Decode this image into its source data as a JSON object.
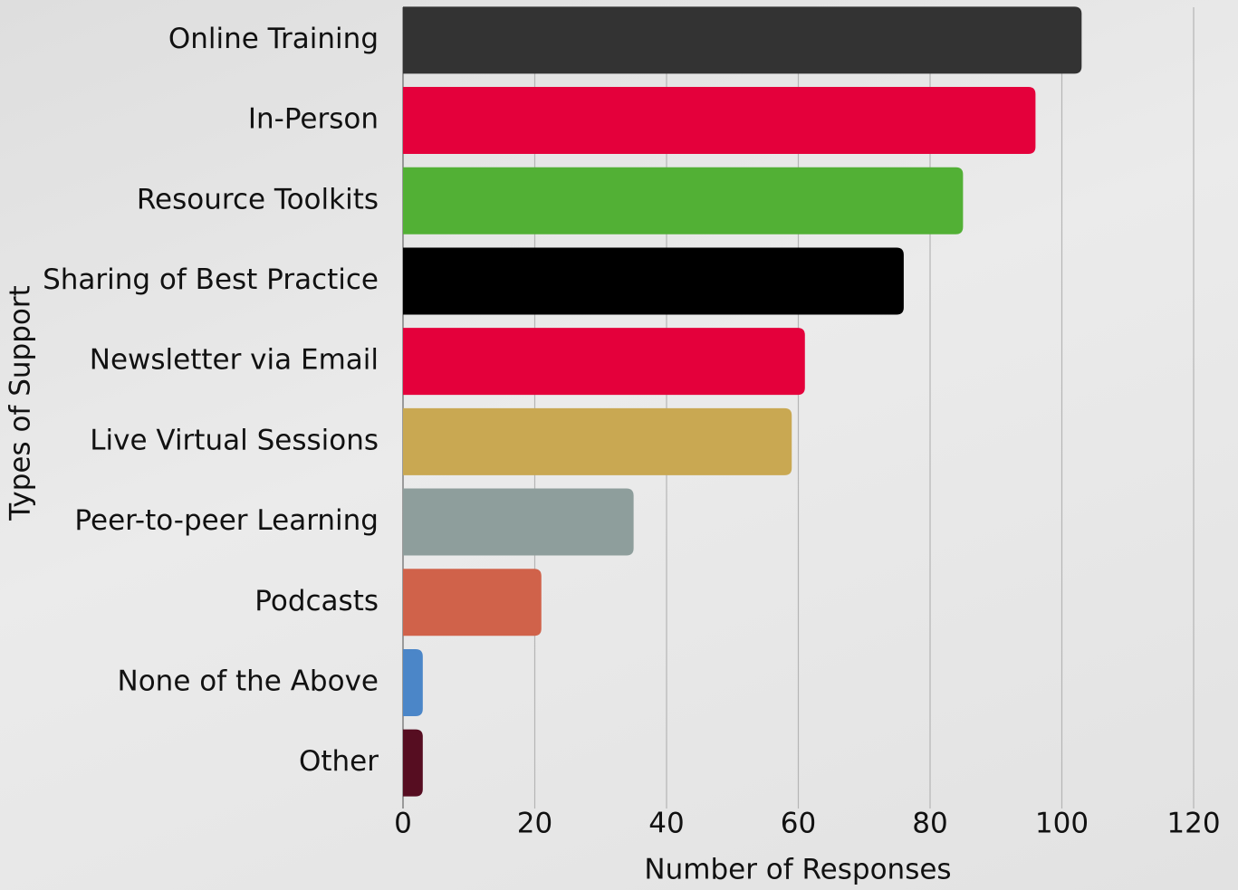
{
  "chart_data": {
    "type": "bar",
    "orientation": "horizontal",
    "x_label": "Number of Responses",
    "y_label": "Types of Support",
    "categories": [
      "Online Training",
      "In-Person",
      "Resource Toolkits",
      "Sharing of Best Practice",
      "Newsletter via Email",
      "Live Virtual Sessions",
      "Peer-to-peer Learning",
      "Podcasts",
      "None of the Above",
      "Other"
    ],
    "values": [
      103,
      96,
      85,
      76,
      61,
      59,
      35,
      21,
      3,
      3
    ],
    "colors": [
      "#333333",
      "#e4003b",
      "#52b035",
      "#000000",
      "#e4003b",
      "#c9a852",
      "#8e9e9c",
      "#d0624a",
      "#4b86c8",
      "#560d21"
    ],
    "xlim": [
      0,
      120
    ],
    "xticks": [
      0,
      20,
      40,
      60,
      80,
      100,
      120
    ],
    "grid": true
  }
}
